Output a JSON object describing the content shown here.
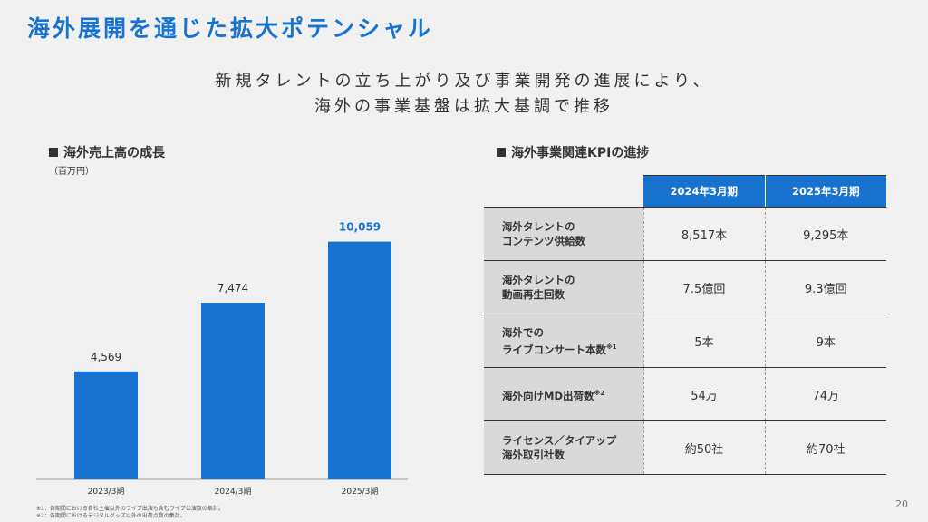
{
  "title": "海外展開を通じた拡大ポテンシャル",
  "subtitle": {
    "line1": "新規タレントの立ち上がり及び事業開発の進展により、",
    "line2": "海外の事業基盤は拡大基調で推移"
  },
  "left_section": {
    "heading": "海外売上高の成長",
    "unit": "（百万円）"
  },
  "right_section": {
    "heading": "海外事業関連KPIの進捗"
  },
  "chart_data": {
    "type": "bar",
    "categories": [
      "2023/3期",
      "2024/3期",
      "2025/3期"
    ],
    "values": [
      4569,
      7474,
      10059
    ],
    "value_labels": [
      "4,569",
      "7,474",
      "10,059"
    ],
    "highlight_index": 2,
    "ylim": [
      0,
      11500
    ],
    "grid": false,
    "colors": {
      "bar": "#1873d0",
      "highlight_label": "#1873d0"
    }
  },
  "table": {
    "columns": [
      "2024年3月期",
      "2025年3月期"
    ],
    "rows": [
      {
        "label_line1": "海外タレントの",
        "label_line2": "コンテンツ供給数",
        "note": "",
        "v2024": "8,517本",
        "v2025": "9,295本"
      },
      {
        "label_line1": "海外タレントの",
        "label_line2": "動画再生回数",
        "note": "",
        "v2024": "7.5億回",
        "v2025": "9.3億回"
      },
      {
        "label_line1": "海外での",
        "label_line2": "ライブコンサート本数",
        "note": "※1",
        "v2024": "5本",
        "v2025": "9本"
      },
      {
        "label_line1": "",
        "label_line2": "海外向けMD出荷数",
        "note": "※2",
        "v2024": "54万",
        "v2025": "74万"
      },
      {
        "label_line1": "ライセンス／タイアップ",
        "label_line2": "海外取引社数",
        "note": "",
        "v2024": "約50社",
        "v2025": "約70社"
      }
    ]
  },
  "footnotes": [
    "※1：各期間における自社主催以外のライブ出演も含むライブ公演数の集計。",
    "※2：各期間におけるデジタルグッズ以外の出荷点数の集計。"
  ],
  "page_number": "20",
  "colors": {
    "accent": "#1873d0",
    "background": "#f1f1f1",
    "row_header": "#d9d9d9"
  }
}
